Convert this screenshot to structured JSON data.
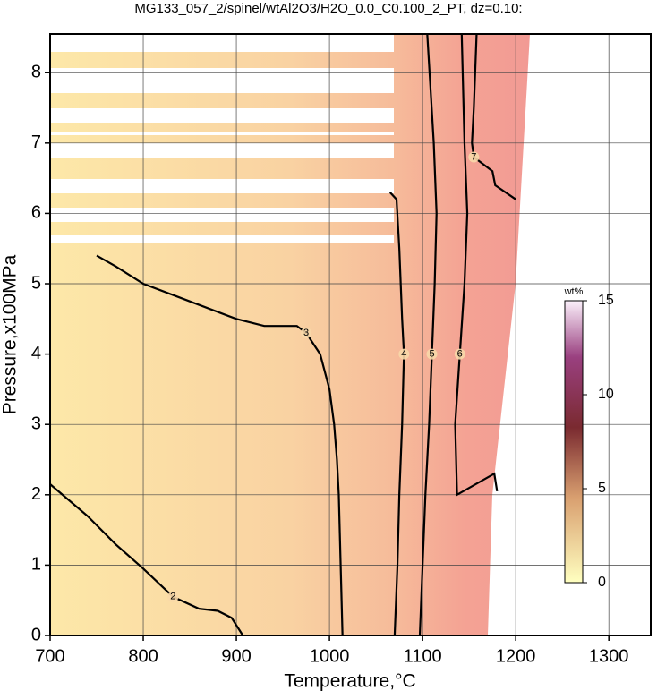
{
  "chart_data": {
    "type": "contour",
    "title": "MG133_057_2/spinel/wtAl2O3/H2O_0.0_C0.100_2_PT, dz=0.10:",
    "x_label": "Temperature,°C",
    "y_label": "Pressure,x100MPa",
    "xlim": [
      700,
      1345
    ],
    "xticks": [
      700,
      800,
      900,
      1000,
      1100,
      1200,
      1300
    ],
    "ylim": [
      0,
      8.55
    ],
    "yticks": [
      0,
      1,
      2,
      3,
      4,
      5,
      6,
      7,
      8
    ],
    "grid": true,
    "line_color": "#000000",
    "contours": [
      {
        "level": 2,
        "x": [
          700,
          740,
          770,
          800,
          832,
          860,
          880,
          895,
          907
        ],
        "y": [
          2.15,
          1.7,
          1.3,
          0.95,
          0.55,
          0.38,
          0.35,
          0.25,
          0
        ]
      },
      {
        "level": 3,
        "x": [
          750,
          770,
          800,
          850,
          900,
          930,
          965,
          975,
          990,
          1000,
          1005,
          1008,
          1010,
          1012,
          1014
        ],
        "y": [
          5.4,
          5.25,
          5.0,
          4.75,
          4.5,
          4.4,
          4.4,
          4.3,
          4.0,
          3.5,
          3.0,
          2.5,
          2.0,
          1.0,
          0
        ]
      },
      {
        "level": 4,
        "x": [
          1065,
          1072,
          1075,
          1078,
          1080,
          1078,
          1075,
          1073,
          1070
        ],
        "y": [
          6.3,
          6.2,
          5.5,
          4.5,
          4.0,
          3.0,
          2.0,
          1.0,
          0
        ]
      },
      {
        "level": 5,
        "x": [
          1105,
          1112,
          1115,
          1113,
          1110,
          1107,
          1103,
          1100,
          1097
        ],
        "y": [
          8.55,
          7,
          6,
          5,
          4,
          3,
          2,
          1,
          0
        ]
      },
      {
        "level": 6,
        "x": [
          1142,
          1145,
          1148,
          1145,
          1140,
          1135,
          1137,
          1177,
          1180
        ],
        "y": [
          8.55,
          7,
          6,
          5,
          4,
          3,
          2.0,
          2.3,
          2.05
        ]
      },
      {
        "level": 7,
        "x": [
          1158,
          1155,
          1153,
          1155,
          1175,
          1178,
          1200
        ],
        "y": [
          8.55,
          7.5,
          7.0,
          6.8,
          6.6,
          6.4,
          6.2
        ]
      }
    ],
    "colorbar": {
      "label": "wt%",
      "lim": [
        0,
        15
      ],
      "ticks": [
        0,
        5,
        10,
        15
      ]
    }
  }
}
